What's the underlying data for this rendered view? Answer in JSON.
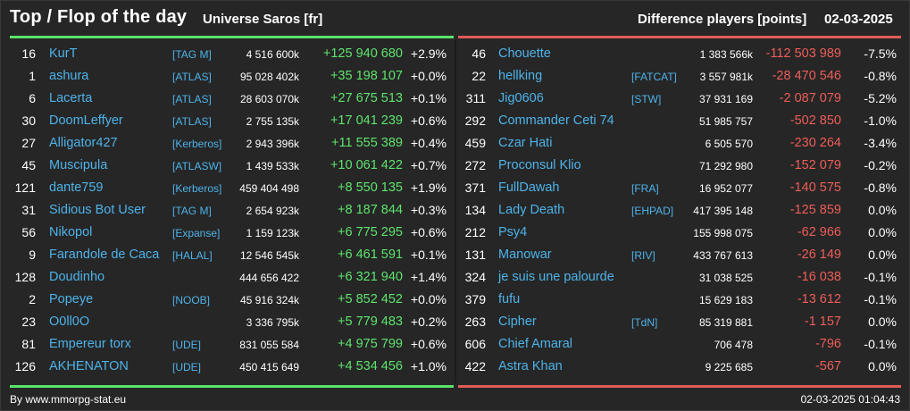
{
  "header": {
    "title": "Top / Flop of the day",
    "universe": "Universe Saros [fr]",
    "subtitle": "Difference players [points]",
    "date": "02-03-2025"
  },
  "colors": {
    "background": "#262626",
    "name": "#4db3ea",
    "gain": "#5ee46e",
    "loss": "#ee5d58",
    "top_bar": "#5ae26a",
    "flop_bar": "#e05b57"
  },
  "top": [
    {
      "rank": "16",
      "name": "KurT",
      "tag": "[TAG M]",
      "points": "4 516 600k",
      "delta": "+125 940 680",
      "pct": "+2.9%"
    },
    {
      "rank": "1",
      "name": "ashura",
      "tag": "[ATLAS]",
      "points": "95 028 402k",
      "delta": "+35 198 107",
      "pct": "+0.0%"
    },
    {
      "rank": "6",
      "name": "Lacerta",
      "tag": "[ATLAS]",
      "points": "28 603 070k",
      "delta": "+27 675 513",
      "pct": "+0.1%"
    },
    {
      "rank": "30",
      "name": "DoomLeffyer",
      "tag": "[ATLAS]",
      "points": "2 755 135k",
      "delta": "+17 041 239",
      "pct": "+0.6%"
    },
    {
      "rank": "27",
      "name": "Alligator427",
      "tag": "[Kerberos]",
      "points": "2 943 396k",
      "delta": "+11 555 389",
      "pct": "+0.4%"
    },
    {
      "rank": "45",
      "name": "Muscipula",
      "tag": "[ATLASW]",
      "points": "1 439 533k",
      "delta": "+10 061 422",
      "pct": "+0.7%"
    },
    {
      "rank": "121",
      "name": "dante759",
      "tag": "[Kerberos]",
      "points": "459 404 498",
      "delta": "+8 550 135",
      "pct": "+1.9%"
    },
    {
      "rank": "31",
      "name": "Sidious Bot User",
      "tag": "[TAG M]",
      "points": "2 654 923k",
      "delta": "+8 187 844",
      "pct": "+0.3%"
    },
    {
      "rank": "56",
      "name": "Nikopol",
      "tag": "[Expanse]",
      "points": "1 159 123k",
      "delta": "+6 775 295",
      "pct": "+0.6%"
    },
    {
      "rank": "9",
      "name": "Farandole de Caca",
      "tag": "[HALAL]",
      "points": "12 546 545k",
      "delta": "+6 461 591",
      "pct": "+0.1%"
    },
    {
      "rank": "128",
      "name": "Doudinho",
      "tag": "",
      "points": "444 656 422",
      "delta": "+6 321 940",
      "pct": "+1.4%"
    },
    {
      "rank": "2",
      "name": "Popeye",
      "tag": "[NOOB]",
      "points": "45 916 324k",
      "delta": "+5 852 452",
      "pct": "+0.0%"
    },
    {
      "rank": "23",
      "name": "O0ll0O",
      "tag": "",
      "points": "3 336 795k",
      "delta": "+5 779 483",
      "pct": "+0.2%"
    },
    {
      "rank": "81",
      "name": "Empereur torx",
      "tag": "[UDE]",
      "points": "831 055 584",
      "delta": "+4 975 799",
      "pct": "+0.6%"
    },
    {
      "rank": "126",
      "name": "AKHENATON",
      "tag": "[UDE]",
      "points": "450 415 649",
      "delta": "+4 534 456",
      "pct": "+1.0%"
    }
  ],
  "flop": [
    {
      "rank": "46",
      "name": "Chouette",
      "tag": "",
      "points": "1 383 566k",
      "delta": "-112 503 989",
      "pct": "-7.5%"
    },
    {
      "rank": "22",
      "name": "hellking",
      "tag": "[FATCAT]",
      "points": "3 557 981k",
      "delta": "-28 470 546",
      "pct": "-0.8%"
    },
    {
      "rank": "311",
      "name": "Jig0606",
      "tag": "[STW]",
      "points": "37 931 169",
      "delta": "-2 087 079",
      "pct": "-5.2%"
    },
    {
      "rank": "292",
      "name": "Commander Ceti 74",
      "tag": "",
      "points": "51 985 757",
      "delta": "-502 850",
      "pct": "-1.0%"
    },
    {
      "rank": "459",
      "name": "Czar Hati",
      "tag": "",
      "points": "6 505 570",
      "delta": "-230 264",
      "pct": "-3.4%"
    },
    {
      "rank": "272",
      "name": "Proconsul Klio",
      "tag": "",
      "points": "71 292 980",
      "delta": "-152 079",
      "pct": "-0.2%"
    },
    {
      "rank": "371",
      "name": "FullDawah",
      "tag": "[FRA]",
      "points": "16 952 077",
      "delta": "-140 575",
      "pct": "-0.8%"
    },
    {
      "rank": "134",
      "name": "Lady Death",
      "tag": "[EHPAD]",
      "points": "417 395 148",
      "delta": "-125 859",
      "pct": "0.0%"
    },
    {
      "rank": "212",
      "name": "Psy4",
      "tag": "",
      "points": "155 998 075",
      "delta": "-62 966",
      "pct": "0.0%"
    },
    {
      "rank": "131",
      "name": "Manowar",
      "tag": "[RIV]",
      "points": "433 767 613",
      "delta": "-26 149",
      "pct": "0.0%"
    },
    {
      "rank": "324",
      "name": "je suis une palourde",
      "tag": "",
      "points": "31 038 525",
      "delta": "-16 038",
      "pct": "-0.1%"
    },
    {
      "rank": "379",
      "name": "fufu",
      "tag": "",
      "points": "15 629 183",
      "delta": "-13 612",
      "pct": "-0.1%"
    },
    {
      "rank": "263",
      "name": "Cipher",
      "tag": "[TdN]",
      "points": "85 319 881",
      "delta": "-1 157",
      "pct": "0.0%"
    },
    {
      "rank": "606",
      "name": "Chief Amaral",
      "tag": "",
      "points": "706 478",
      "delta": "-796",
      "pct": "-0.1%"
    },
    {
      "rank": "422",
      "name": "Astra Khan",
      "tag": "",
      "points": "9 225 685",
      "delta": "-567",
      "pct": "0.0%"
    }
  ],
  "footer": {
    "source": "By www.mmorpg-stat.eu",
    "timestamp": "02-03-2025 01:04:43"
  }
}
